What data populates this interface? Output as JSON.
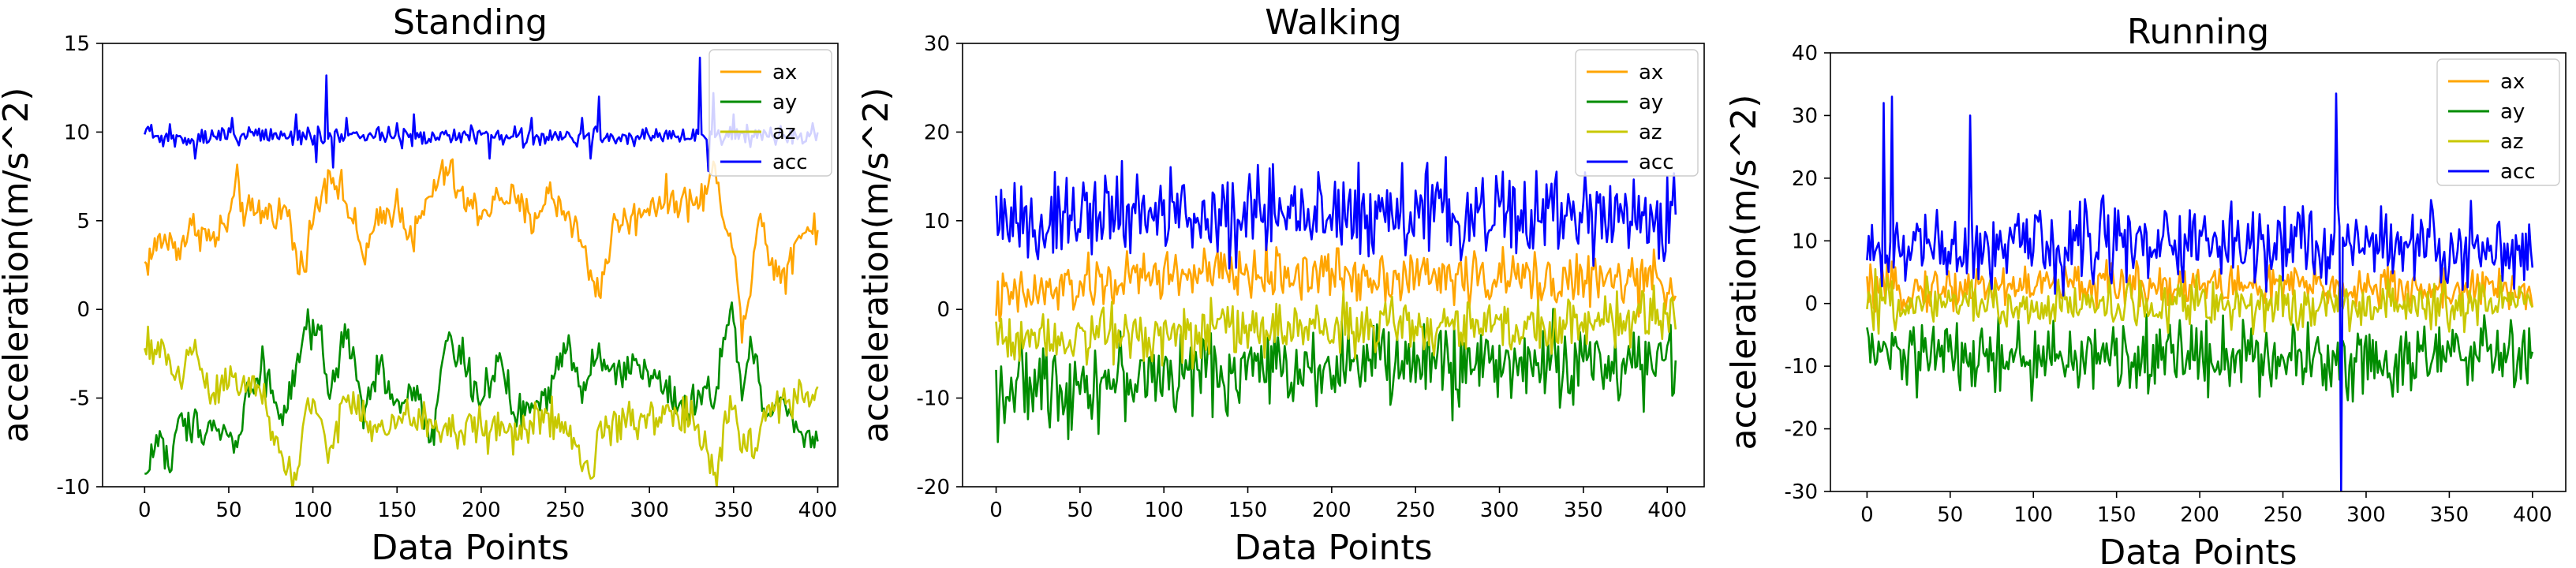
{
  "figure": {
    "description_free": true
  },
  "chart_data": [
    {
      "type": "line",
      "title": "Standing",
      "xlabel": "Data Points",
      "ylabel": "acceleration(m/s^2)",
      "xlim": [
        -25,
        412
      ],
      "ylim": [
        -10,
        15
      ],
      "xticks": [
        0,
        50,
        100,
        150,
        200,
        250,
        300,
        350,
        400
      ],
      "yticks": [
        -10,
        -5,
        0,
        5,
        10,
        15
      ],
      "legend": "top-right",
      "n_points": 401,
      "series": [
        {
          "name": "ax",
          "color": "#ffa500",
          "anchors": [
            [
              0,
              2.5
            ],
            [
              10,
              4
            ],
            [
              20,
              3.5
            ],
            [
              30,
              4.8
            ],
            [
              40,
              3.8
            ],
            [
              50,
              5
            ],
            [
              55,
              7
            ],
            [
              60,
              5.3
            ],
            [
              70,
              5.5
            ],
            [
              85,
              5.5
            ],
            [
              92,
              2
            ],
            [
              100,
              5
            ],
            [
              110,
              8
            ],
            [
              120,
              6
            ],
            [
              130,
              3
            ],
            [
              140,
              5
            ],
            [
              150,
              6
            ],
            [
              160,
              4
            ],
            [
              170,
              6.5
            ],
            [
              180,
              8
            ],
            [
              190,
              6
            ],
            [
              200,
              5.5
            ],
            [
              215,
              6.5
            ],
            [
              230,
              5
            ],
            [
              240,
              6.5
            ],
            [
              255,
              5
            ],
            [
              265,
              2
            ],
            [
              270,
              1
            ],
            [
              280,
              5
            ],
            [
              290,
              5
            ],
            [
              300,
              6
            ],
            [
              315,
              6.2
            ],
            [
              330,
              6
            ],
            [
              340,
              8
            ],
            [
              345,
              5
            ],
            [
              350,
              3
            ],
            [
              355,
              -0.5
            ],
            [
              360,
              1
            ],
            [
              365,
              6
            ],
            [
              370,
              3
            ],
            [
              380,
              2
            ],
            [
              390,
              4.5
            ],
            [
              400,
              4.5
            ]
          ],
          "noise": 0.9
        },
        {
          "name": "ay",
          "color": "#008c00",
          "anchors": [
            [
              0,
              -9.5
            ],
            [
              8,
              -7
            ],
            [
              15,
              -9
            ],
            [
              20,
              -6.5
            ],
            [
              40,
              -6.5
            ],
            [
              50,
              -7
            ],
            [
              55,
              -8
            ],
            [
              60,
              -5
            ],
            [
              70,
              -3
            ],
            [
              80,
              -6
            ],
            [
              90,
              -4
            ],
            [
              95,
              -1
            ],
            [
              105,
              -2
            ],
            [
              110,
              -5
            ],
            [
              120,
              -1
            ],
            [
              130,
              -6
            ],
            [
              140,
              -3
            ],
            [
              150,
              -6
            ],
            [
              160,
              -4
            ],
            [
              170,
              -7.5
            ],
            [
              180,
              -1.5
            ],
            [
              190,
              -3
            ],
            [
              200,
              -5
            ],
            [
              210,
              -3
            ],
            [
              220,
              -6
            ],
            [
              240,
              -5
            ],
            [
              250,
              -1.5
            ],
            [
              260,
              -4.5
            ],
            [
              270,
              -2
            ],
            [
              280,
              -4
            ],
            [
              290,
              -3
            ],
            [
              300,
              -3.5
            ],
            [
              310,
              -4.5
            ],
            [
              320,
              -6
            ],
            [
              330,
              -5
            ],
            [
              340,
              -4.5
            ],
            [
              345,
              -1
            ],
            [
              350,
              -0.5
            ],
            [
              355,
              -5
            ],
            [
              360,
              -2
            ],
            [
              370,
              -6
            ],
            [
              380,
              -5
            ],
            [
              390,
              -7
            ],
            [
              400,
              -7.2
            ]
          ],
          "noise": 0.9
        },
        {
          "name": "az",
          "color": "#c8c800",
          "anchors": [
            [
              0,
              -2.5
            ],
            [
              10,
              -2
            ],
            [
              20,
              -4
            ],
            [
              30,
              -2
            ],
            [
              40,
              -5
            ],
            [
              50,
              -3.5
            ],
            [
              60,
              -4
            ],
            [
              70,
              -5
            ],
            [
              80,
              -8
            ],
            [
              90,
              -10
            ],
            [
              95,
              -6
            ],
            [
              100,
              -5
            ],
            [
              110,
              -8
            ],
            [
              120,
              -5
            ],
            [
              140,
              -7
            ],
            [
              160,
              -6
            ],
            [
              180,
              -7
            ],
            [
              200,
              -6.5
            ],
            [
              220,
              -7
            ],
            [
              240,
              -6
            ],
            [
              255,
              -7.5
            ],
            [
              265,
              -9.5
            ],
            [
              270,
              -7
            ],
            [
              280,
              -6.5
            ],
            [
              300,
              -6
            ],
            [
              320,
              -6
            ],
            [
              330,
              -7
            ],
            [
              340,
              -9
            ],
            [
              350,
              -5
            ],
            [
              355,
              -7
            ],
            [
              360,
              -8
            ],
            [
              370,
              -6
            ],
            [
              380,
              -5
            ],
            [
              390,
              -5
            ],
            [
              400,
              -5
            ]
          ],
          "noise": 1.0
        },
        {
          "name": "acc",
          "color": "#0000ff",
          "anchors": [
            [
              0,
              9.7
            ],
            [
              50,
              9.8
            ],
            [
              100,
              9.8
            ],
            [
              150,
              9.7
            ],
            [
              200,
              9.8
            ],
            [
              250,
              9.7
            ],
            [
              300,
              9.8
            ],
            [
              350,
              9.8
            ],
            [
              400,
              9.8
            ]
          ],
          "noise": 0.45,
          "spikes": [
            [
              2,
              10.3
            ],
            [
              30,
              8.5
            ],
            [
              52,
              10.8
            ],
            [
              80,
              9.6
            ],
            [
              90,
              11
            ],
            [
              102,
              8.3
            ],
            [
              108,
              13.2
            ],
            [
              112,
              8
            ],
            [
              120,
              10.8
            ],
            [
              150,
              10.5
            ],
            [
              160,
              11
            ],
            [
              205,
              8.5
            ],
            [
              230,
              10.8
            ],
            [
              260,
              10.8
            ],
            [
              265,
              8.5
            ],
            [
              270,
              12
            ],
            [
              330,
              14.2
            ],
            [
              335,
              7.8
            ],
            [
              338,
              12.2
            ],
            [
              350,
              11
            ]
          ]
        }
      ]
    },
    {
      "type": "line",
      "title": "Walking",
      "xlabel": "Data Points",
      "ylabel": "acceleration(m/s^2)",
      "xlim": [
        -20,
        422
      ],
      "ylim": [
        -20,
        30
      ],
      "xticks": [
        0,
        50,
        100,
        150,
        200,
        250,
        300,
        350,
        400
      ],
      "yticks": [
        -20,
        -10,
        0,
        10,
        20,
        30
      ],
      "legend": "top-right",
      "n_points": 406,
      "series": [
        {
          "name": "ax",
          "color": "#ffa500",
          "anchors": [
            [
              0,
              1
            ],
            [
              100,
              4
            ],
            [
              200,
              4
            ],
            [
              300,
              3.5
            ],
            [
              405,
              3
            ]
          ],
          "noise": 2.6
        },
        {
          "name": "ay",
          "color": "#008c00",
          "anchors": [
            [
              0,
              -9
            ],
            [
              100,
              -7.5
            ],
            [
              200,
              -6
            ],
            [
              300,
              -6
            ],
            [
              405,
              -6
            ]
          ],
          "noise": 4.0
        },
        {
          "name": "az",
          "color": "#c8c800",
          "anchors": [
            [
              0,
              -3
            ],
            [
              100,
              -2.5
            ],
            [
              200,
              -2
            ],
            [
              300,
              -2
            ],
            [
              405,
              -1
            ]
          ],
          "noise": 2.7
        },
        {
          "name": "acc",
          "color": "#0000ff",
          "anchors": [
            [
              0,
              10
            ],
            [
              100,
              10.5
            ],
            [
              200,
              10.5
            ],
            [
              300,
              11
            ],
            [
              405,
              10
            ]
          ],
          "noise": 4.3
        }
      ]
    },
    {
      "type": "line",
      "title": "Running",
      "xlabel": "Data Points",
      "ylabel": "acceleration(m/s^2)",
      "xlim": [
        -22,
        420
      ],
      "ylim": [
        -30,
        40
      ],
      "xticks": [
        0,
        50,
        100,
        150,
        200,
        250,
        300,
        350,
        400
      ],
      "yticks": [
        -30,
        -20,
        -10,
        0,
        10,
        20,
        30,
        40
      ],
      "legend": "top-right",
      "n_points": 401,
      "series": [
        {
          "name": "ax",
          "color": "#ffa500",
          "anchors": [
            [
              0,
              2
            ],
            [
              100,
              3
            ],
            [
              200,
              3
            ],
            [
              300,
              2.5
            ],
            [
              400,
              2
            ]
          ],
          "noise": 3.0
        },
        {
          "name": "ay",
          "color": "#008c00",
          "anchors": [
            [
              0,
              -8
            ],
            [
              100,
              -9
            ],
            [
              200,
              -8
            ],
            [
              300,
              -9
            ],
            [
              400,
              -8
            ]
          ],
          "noise": 5.0
        },
        {
          "name": "az",
          "color": "#c8c800",
          "anchors": [
            [
              0,
              0
            ],
            [
              100,
              0
            ],
            [
              200,
              0
            ],
            [
              300,
              0
            ],
            [
              400,
              0
            ]
          ],
          "noise": 3.5
        },
        {
          "name": "acc",
          "color": "#0000ff",
          "anchors": [
            [
              0,
              8
            ],
            [
              100,
              10
            ],
            [
              200,
              10
            ],
            [
              300,
              10
            ],
            [
              400,
              8
            ]
          ],
          "noise": 5.5,
          "spikes": [
            [
              10,
              32
            ],
            [
              15,
              33
            ],
            [
              62,
              30
            ],
            [
              282,
              33.5
            ],
            [
              285,
              -30
            ]
          ]
        }
      ]
    }
  ]
}
